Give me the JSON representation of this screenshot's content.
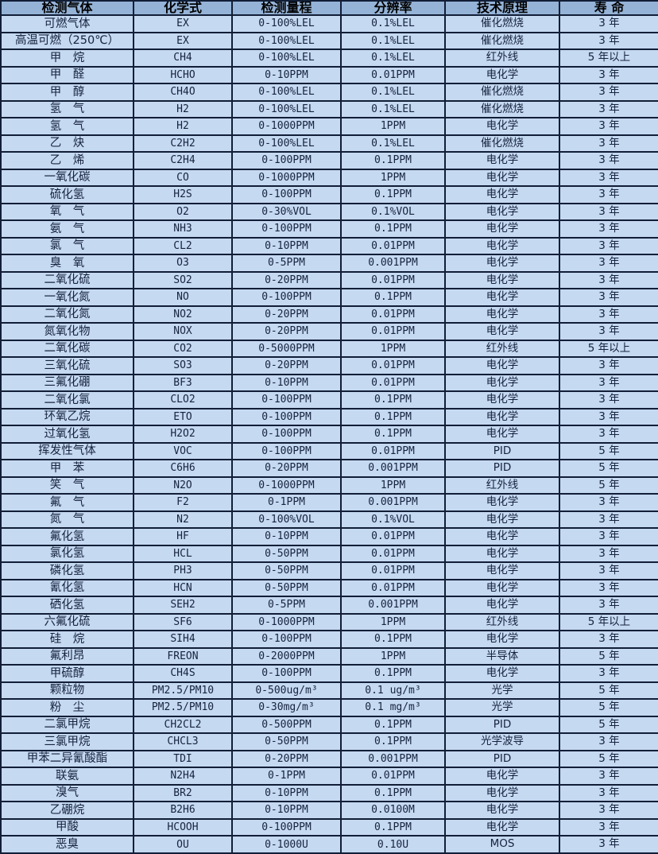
{
  "colors": {
    "header_bg": "#95b3d7",
    "row_bg": "#c5d9f1",
    "border": "#111e36",
    "header_text": "#000000",
    "body_text": "#16233f"
  },
  "table": {
    "headers": [
      "检测气体",
      "化学式",
      "检测量程",
      "分辨率",
      "技术原理",
      "寿 命"
    ],
    "rows": [
      [
        "可燃气体",
        "EX",
        "0-100%LEL",
        "0.1%LEL",
        "催化燃烧",
        "3 年"
      ],
      [
        "高温可燃（250℃）",
        "EX",
        "0-100%LEL",
        "0.1%LEL",
        "催化燃烧",
        "3 年"
      ],
      [
        "甲　烷",
        "CH4",
        "0-100%LEL",
        "0.1%LEL",
        "红外线",
        "5 年以上"
      ],
      [
        "甲　醛",
        "HCHO",
        "0-10PPM",
        "0.01PPM",
        "电化学",
        "3 年"
      ],
      [
        "甲　醇",
        "CH4O",
        "0-100%LEL",
        "0.1%LEL",
        "催化燃烧",
        "3 年"
      ],
      [
        "氢　气",
        "H2",
        "0-100%LEL",
        "0.1%LEL",
        "催化燃烧",
        "3 年"
      ],
      [
        "氢　气",
        "H2",
        "0-1000PPM",
        "1PPM",
        "电化学",
        "3 年"
      ],
      [
        "乙　炔",
        "C2H2",
        "0-100%LEL",
        "0.1%LEL",
        "催化燃烧",
        "3 年"
      ],
      [
        "乙　烯",
        "C2H4",
        "0-100PPM",
        "0.1PPM",
        "电化学",
        "3 年"
      ],
      [
        "一氧化碳",
        "CO",
        "0-1000PPM",
        "1PPM",
        "电化学",
        "3 年"
      ],
      [
        "硫化氢",
        "H2S",
        "0-100PPM",
        "0.1PPM",
        "电化学",
        "3 年"
      ],
      [
        "氧　气",
        "O2",
        "0-30%VOL",
        "0.1%VOL",
        "电化学",
        "3 年"
      ],
      [
        "氨　气",
        "NH3",
        "0-100PPM",
        "0.1PPM",
        "电化学",
        "3 年"
      ],
      [
        "氯　气",
        "CL2",
        "0-10PPM",
        "0.01PPM",
        "电化学",
        "3 年"
      ],
      [
        "臭　氧",
        "O3",
        "0-5PPM",
        "0.001PPM",
        "电化学",
        "3 年"
      ],
      [
        "二氧化硫",
        "SO2",
        "0-20PPM",
        "0.01PPM",
        "电化学",
        "3 年"
      ],
      [
        "一氧化氮",
        "NO",
        "0-100PPM",
        "0.1PPM",
        "电化学",
        "3 年"
      ],
      [
        "二氧化氮",
        "NO2",
        "0-20PPM",
        "0.01PPM",
        "电化学",
        "3 年"
      ],
      [
        "氮氧化物",
        "NOX",
        "0-20PPM",
        "0.01PPM",
        "电化学",
        "3 年"
      ],
      [
        "二氧化碳",
        "CO2",
        "0-5000PPM",
        "1PPM",
        "红外线",
        "5 年以上"
      ],
      [
        "三氧化硫",
        "SO3",
        "0-20PPM",
        "0.01PPM",
        "电化学",
        "3 年"
      ],
      [
        "三氟化硼",
        "BF3",
        "0-10PPM",
        "0.01PPM",
        "电化学",
        "3 年"
      ],
      [
        "二氧化氯",
        "CLO2",
        "0-100PPM",
        "0.1PPM",
        "电化学",
        "3 年"
      ],
      [
        "环氧乙烷",
        "ETO",
        "0-100PPM",
        "0.1PPM",
        "电化学",
        "3 年"
      ],
      [
        "过氧化氢",
        "H2O2",
        "0-100PPM",
        "0.1PPM",
        "电化学",
        "3 年"
      ],
      [
        "挥发性气体",
        "VOC",
        "0-100PPM",
        "0.01PPM",
        "PID",
        "5 年"
      ],
      [
        "甲　苯",
        "C6H6",
        "0-20PPM",
        "0.001PPM",
        "PID",
        "5 年"
      ],
      [
        "笑　气",
        "N2O",
        "0-1000PPM",
        "1PPM",
        "红外线",
        "5 年"
      ],
      [
        "氟　气",
        "F2",
        "0-1PPM",
        "0.001PPM",
        "电化学",
        "3 年"
      ],
      [
        "氮　气",
        "N2",
        "0-100%VOL",
        "0.1%VOL",
        "电化学",
        "3 年"
      ],
      [
        "氟化氢",
        "HF",
        "0-10PPM",
        "0.01PPM",
        "电化学",
        "3 年"
      ],
      [
        "氯化氢",
        "HCL",
        "0-50PPM",
        "0.01PPM",
        "电化学",
        "3 年"
      ],
      [
        "磷化氢",
        "PH3",
        "0-50PPM",
        "0.01PPM",
        "电化学",
        "3 年"
      ],
      [
        "氰化氢",
        "HCN",
        "0-50PPM",
        "0.01PPM",
        "电化学",
        "3 年"
      ],
      [
        "硒化氢",
        "SEH2",
        "0-5PPM",
        "0.001PPM",
        "电化学",
        "3 年"
      ],
      [
        "六氟化硫",
        "SF6",
        "0-1000PPM",
        "1PPM",
        "红外线",
        "5 年以上"
      ],
      [
        "硅　烷",
        "SIH4",
        "0-100PPM",
        "0.1PPM",
        "电化学",
        "3 年"
      ],
      [
        "氟利昂",
        "FREON",
        "0-2000PPM",
        "1PPM",
        "半导体",
        "5 年"
      ],
      [
        "甲硫醇",
        "CH4S",
        "0-100PPM",
        "0.1PPM",
        "电化学",
        "3 年"
      ],
      [
        "颗粒物",
        "PM2.5/PM10",
        "0-500ug/m³",
        "0.1 ug/m³",
        "光学",
        "5 年"
      ],
      [
        "粉　尘",
        "PM2.5/PM10",
        "0-30mg/m³",
        "0.1 mg/m³",
        "光学",
        "5 年"
      ],
      [
        "二氯甲烷",
        "CH2CL2",
        "0-500PPM",
        "0.1PPM",
        "PID",
        "5 年"
      ],
      [
        "三氯甲烷",
        "CHCL3",
        "0-50PPM",
        "0.1PPM",
        "光学波导",
        "3 年"
      ],
      [
        "甲苯二异氰酸酯",
        "TDI",
        "0-20PPM",
        "0.001PPM",
        "PID",
        "5 年"
      ],
      [
        "联氨",
        "N2H4",
        "0-1PPM",
        "0.01PPM",
        "电化学",
        "3 年"
      ],
      [
        "溴气",
        "BR2",
        "0-10PPM",
        "0.1PPM",
        "电化学",
        "3 年"
      ],
      [
        "乙硼烷",
        "B2H6",
        "0-10PPM",
        "0.0100M",
        "电化学",
        "3 年"
      ],
      [
        "甲酸",
        "HCOOH",
        "0-100PPM",
        "0.1PPM",
        "电化学",
        "3 年"
      ],
      [
        "恶臭",
        "OU",
        "0-1000U",
        "0.10U",
        "MOS",
        "3 年"
      ]
    ]
  }
}
